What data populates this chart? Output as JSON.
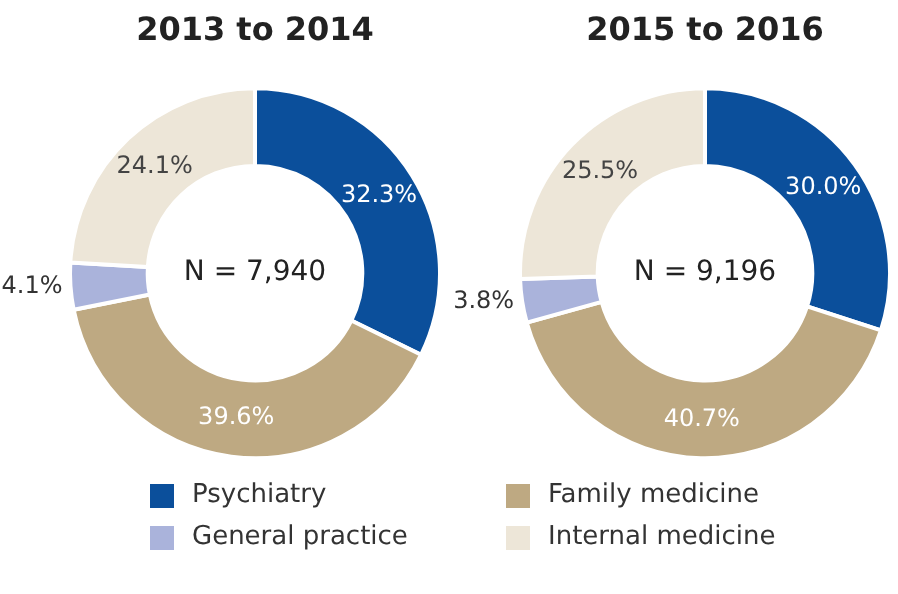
{
  "chart_data": [
    {
      "type": "donut",
      "title": "2013 to 2014",
      "categories": [
        "Psychiatry",
        "Family medicine",
        "General practice",
        "Internal medicine"
      ],
      "values": [
        32.3,
        39.6,
        4.1,
        24.1
      ],
      "colors": [
        "#0b4f9b",
        "#bea982",
        "#aab3db",
        "#ede6d8"
      ],
      "value_labels": [
        "32.3%",
        "39.6%",
        "4.1%",
        "24.1%"
      ],
      "annotations": [
        "N = 7,940"
      ],
      "legend": "bottom"
    },
    {
      "type": "donut",
      "title": "2015 to 2016",
      "categories": [
        null,
        null,
        null,
        null
      ],
      "values": [
        30.0,
        40.7,
        3.8,
        25.5
      ],
      "colors": [
        "#0b4f9b",
        "#bea982",
        "#aab3db",
        "#ede6d8"
      ],
      "value_labels": [
        "30.0%",
        "40.7%",
        "3.8%",
        "25.5%"
      ],
      "annotations": [
        "N = 9,196"
      ]
    }
  ]
}
